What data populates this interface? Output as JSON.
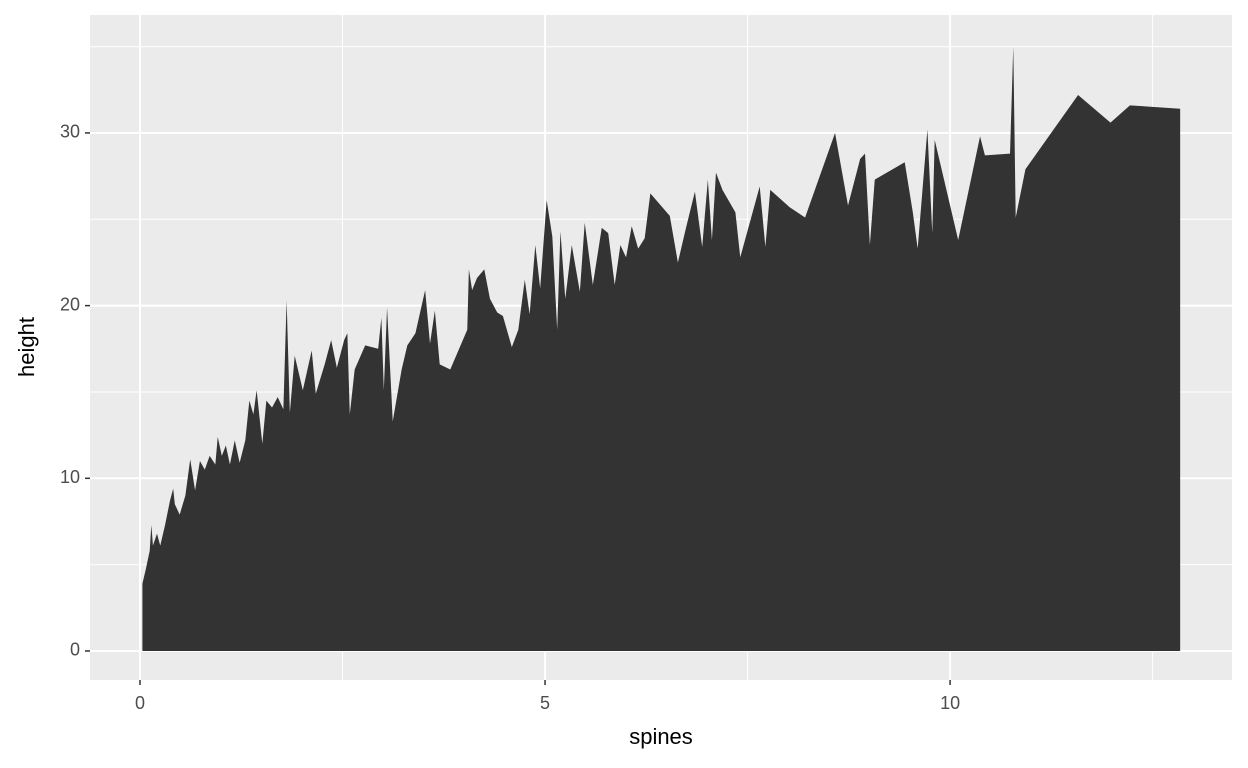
{
  "chart_data": {
    "type": "area",
    "x_label": "spines",
    "y_label": "height",
    "color": "#333333",
    "grid": true,
    "x": [
      0.03,
      0.07,
      0.12,
      0.14,
      0.16,
      0.21,
      0.25,
      0.31,
      0.37,
      0.41,
      0.43,
      0.49,
      0.56,
      0.62,
      0.68,
      0.74,
      0.8,
      0.86,
      0.93,
      0.96,
      1.01,
      1.06,
      1.11,
      1.17,
      1.23,
      1.3,
      1.35,
      1.4,
      1.44,
      1.51,
      1.56,
      1.63,
      1.7,
      1.77,
      1.81,
      1.85,
      1.91,
      2.01,
      2.12,
      2.17,
      2.28,
      2.36,
      2.43,
      2.52,
      2.56,
      2.59,
      2.65,
      2.78,
      2.94,
      2.98,
      3.01,
      3.05,
      3.12,
      3.23,
      3.3,
      3.4,
      3.52,
      3.58,
      3.64,
      3.7,
      3.83,
      4.04,
      4.06,
      4.1,
      4.16,
      4.25,
      4.32,
      4.41,
      4.48,
      4.59,
      4.67,
      4.75,
      4.81,
      4.88,
      4.94,
      5.02,
      5.09,
      5.15,
      5.19,
      5.25,
      5.33,
      5.43,
      5.49,
      5.59,
      5.7,
      5.78,
      5.86,
      5.93,
      6.0,
      6.07,
      6.15,
      6.23,
      6.3,
      6.54,
      6.64,
      6.74,
      6.85,
      6.94,
      7.01,
      7.06,
      7.11,
      7.19,
      7.35,
      7.41,
      7.65,
      7.72,
      7.78,
      8.02,
      8.21,
      8.58,
      8.74,
      8.89,
      8.95,
      9.01,
      9.07,
      9.44,
      9.54,
      9.6,
      9.72,
      9.78,
      9.81,
      10.1,
      10.37,
      10.43,
      10.74,
      10.78,
      10.81,
      10.93,
      11.58,
      11.98,
      12.22,
      12.84
    ],
    "values": [
      3.9,
      4.7,
      5.8,
      7.3,
      6.1,
      6.8,
      6.1,
      7.3,
      8.7,
      9.4,
      8.5,
      7.9,
      9.0,
      11.1,
      9.3,
      11.0,
      10.5,
      11.3,
      10.8,
      12.4,
      11.3,
      11.9,
      10.8,
      12.2,
      10.9,
      12.2,
      14.5,
      13.7,
      15.1,
      12.0,
      14.5,
      14.1,
      14.7,
      14.0,
      20.3,
      13.8,
      17.1,
      15.1,
      17.4,
      14.9,
      16.6,
      18.0,
      16.4,
      18.0,
      18.4,
      13.7,
      16.3,
      17.7,
      17.5,
      19.3,
      15.1,
      19.9,
      13.3,
      16.3,
      17.7,
      18.4,
      20.9,
      17.8,
      19.7,
      16.6,
      16.3,
      18.6,
      22.1,
      20.9,
      21.6,
      22.1,
      20.4,
      19.6,
      19.4,
      17.6,
      18.6,
      21.5,
      19.5,
      23.5,
      21.0,
      26.1,
      24.0,
      18.6,
      24.3,
      20.4,
      23.5,
      20.8,
      24.8,
      21.2,
      24.5,
      24.2,
      21.2,
      23.5,
      22.8,
      24.6,
      23.3,
      23.9,
      26.5,
      25.2,
      22.5,
      24.5,
      26.6,
      23.4,
      27.3,
      23.8,
      27.7,
      26.7,
      25.4,
      22.8,
      26.9,
      23.4,
      26.7,
      25.7,
      25.1,
      30.0,
      25.8,
      28.5,
      28.8,
      23.5,
      27.3,
      28.3,
      25.4,
      23.3,
      30.2,
      24.2,
      29.6,
      23.8,
      29.8,
      28.7,
      28.8,
      35.0,
      25.1,
      27.9,
      32.2,
      30.6,
      31.6,
      31.4
    ],
    "xlim": [
      -0.617,
      13.48
    ],
    "ylim": [
      -1.68,
      36.83
    ],
    "xticks": [
      0,
      5,
      10
    ],
    "yticks": [
      0,
      10,
      20,
      30
    ]
  }
}
